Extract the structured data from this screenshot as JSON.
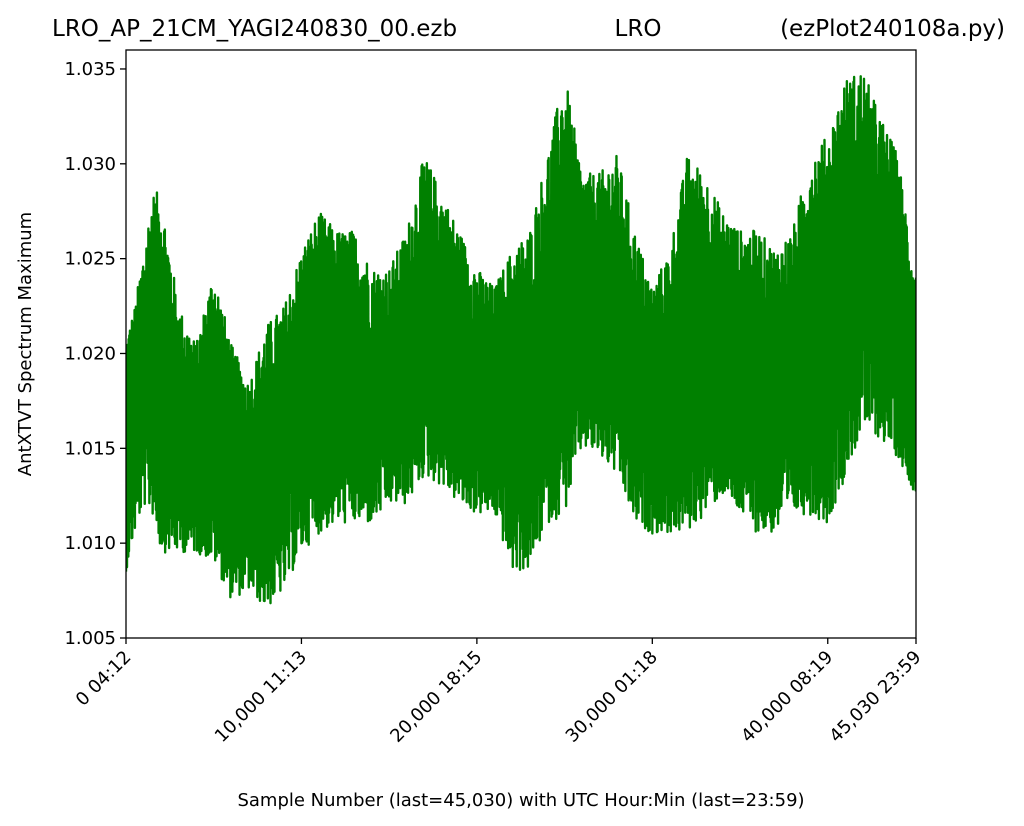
{
  "title": {
    "left": "LRO_AP_21CM_YAGI240830_00.ezb",
    "center": "LRO",
    "right": "(ezPlot240108a.py)"
  },
  "chart_data": {
    "type": "line",
    "xlabel": "Sample Number (last=45,030) with UTC Hour:Min (last=23:59)",
    "ylabel": "AntXTVT Spectrum Maximum",
    "xlim": [
      0,
      45030
    ],
    "ylim": [
      1.005,
      1.036
    ],
    "y_ticks": [
      1.005,
      1.01,
      1.015,
      1.02,
      1.025,
      1.03,
      1.035
    ],
    "y_tick_labels": [
      "1.005",
      "1.010",
      "1.015",
      "1.020",
      "1.025",
      "1.030",
      "1.035"
    ],
    "x_ticks": [
      0,
      10000,
      20000,
      30000,
      40000,
      45030
    ],
    "x_tick_labels": [
      "0  04:12",
      "10,000  11:13",
      "20,000  18:15",
      "30,000  01:18",
      "40,000  08:19",
      "45,030  23:59"
    ],
    "grid": false,
    "series": [
      {
        "color": "#008000",
        "envelope": {
          "x": [
            0,
            500,
            1000,
            1500,
            2000,
            3000,
            4000,
            5000,
            6000,
            7000,
            8000,
            9000,
            10000,
            11000,
            12000,
            13000,
            14000,
            15000,
            16000,
            17000,
            18000,
            19000,
            20000,
            21000,
            22000,
            23000,
            24000,
            25000,
            26000,
            27000,
            28000,
            29000,
            30000,
            31000,
            32000,
            33000,
            34000,
            35000,
            36000,
            37000,
            38000,
            39000,
            40000,
            41000,
            42000,
            43000,
            44000,
            45030
          ],
          "y_min": [
            1.0085,
            1.0105,
            1.012,
            1.0115,
            1.0095,
            1.0095,
            1.0095,
            1.009,
            1.007,
            1.0075,
            1.0065,
            1.0075,
            1.0095,
            1.0105,
            1.011,
            1.011,
            1.011,
            1.012,
            1.012,
            1.0135,
            1.013,
            1.012,
            1.0115,
            1.0115,
            1.0085,
            1.0085,
            1.011,
            1.0115,
            1.015,
            1.0145,
            1.0135,
            1.011,
            1.0105,
            1.0105,
            1.0105,
            1.0115,
            1.0125,
            1.0115,
            1.0105,
            1.0105,
            1.0115,
            1.0115,
            1.011,
            1.0135,
            1.016,
            1.0155,
            1.0145,
            1.0125
          ],
          "y_max": [
            1.021,
            1.0225,
            1.0255,
            1.0285,
            1.0285,
            1.0225,
            1.0205,
            1.0245,
            1.0205,
            1.0185,
            1.0215,
            1.0225,
            1.0255,
            1.0275,
            1.0265,
            1.0265,
            1.0245,
            1.0245,
            1.0265,
            1.0305,
            1.0285,
            1.0265,
            1.0245,
            1.0235,
            1.0255,
            1.0265,
            1.0305,
            1.0348,
            1.0295,
            1.0295,
            1.0305,
            1.0265,
            1.0235,
            1.0255,
            1.0305,
            1.0295,
            1.0275,
            1.0265,
            1.0265,
            1.0255,
            1.0265,
            1.0305,
            1.0315,
            1.0345,
            1.035,
            1.0325,
            1.0305,
            1.024
          ]
        }
      }
    ]
  }
}
